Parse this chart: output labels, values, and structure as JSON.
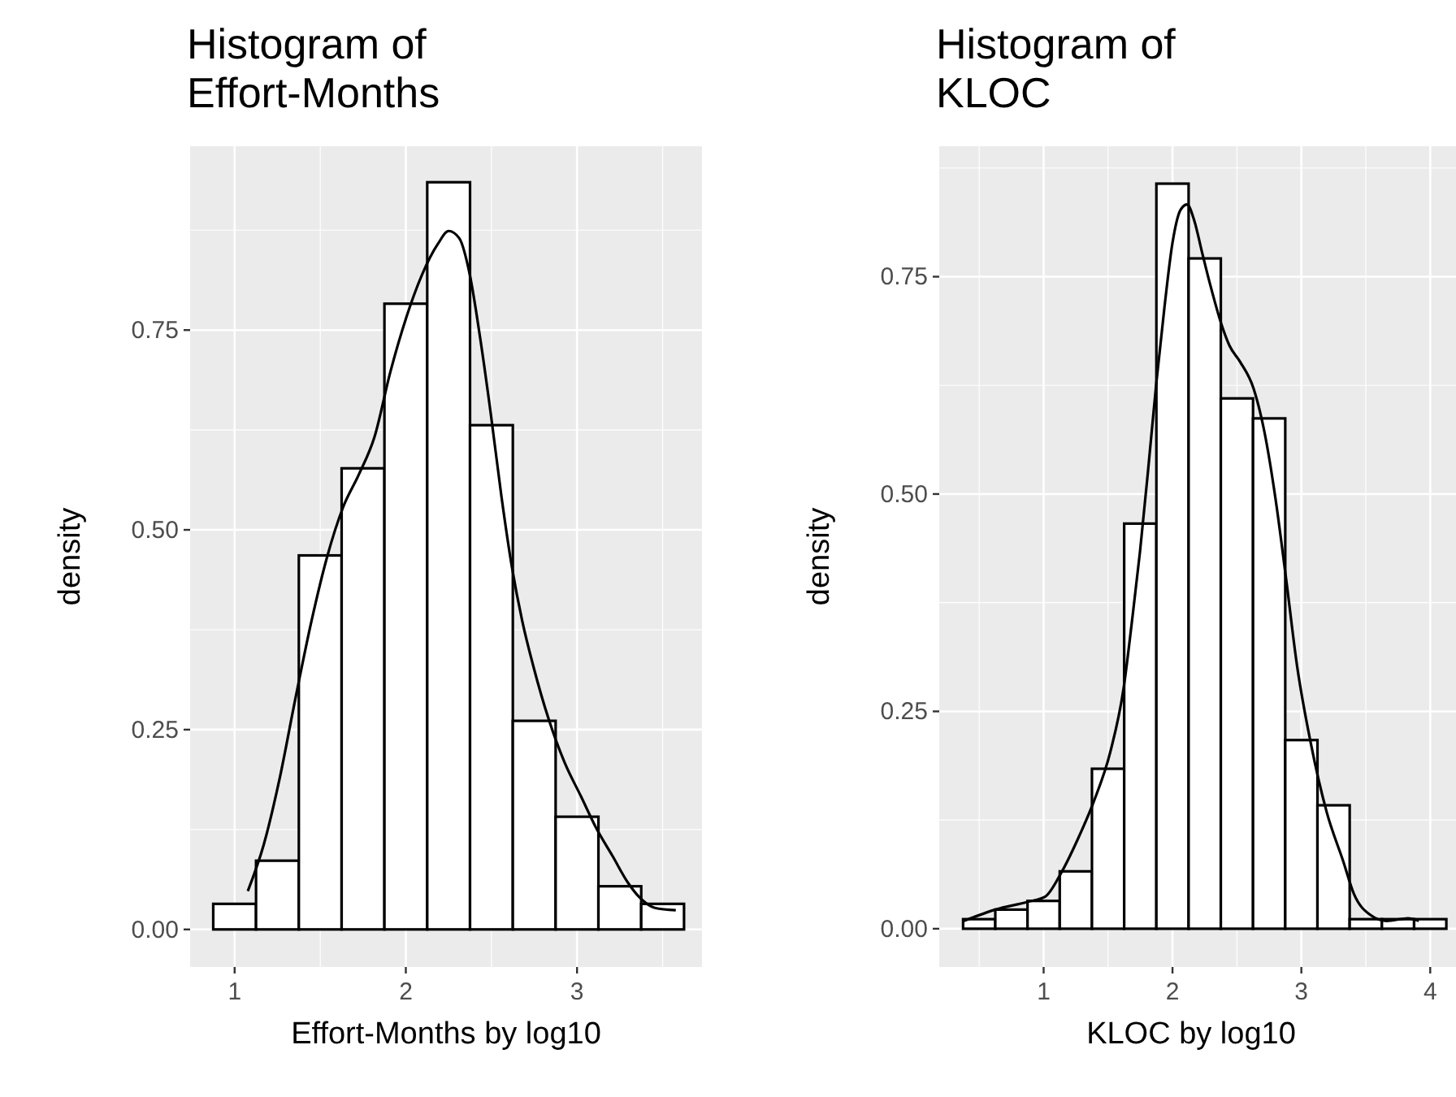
{
  "chart_data": [
    {
      "type": "histogram",
      "title": "Histogram of\nEffort-Months",
      "xlabel": "Effort-Months by log10",
      "ylabel": "density",
      "color": "#ffffff",
      "grid": true,
      "bins": [
        0.875,
        1.125,
        1.375,
        1.625,
        1.875,
        2.125,
        2.375,
        2.625,
        2.875,
        3.125,
        3.375,
        3.625
      ],
      "values": [
        0.032,
        0.086,
        0.468,
        0.577,
        0.783,
        0.935,
        0.631,
        0.261,
        0.141,
        0.054,
        0.032
      ],
      "xlim": [
        0.74,
        3.73
      ],
      "xticks": [
        1,
        2,
        3
      ],
      "ylim": [
        -0.047,
        0.98
      ],
      "yticks": [
        {
          "value": 0,
          "label": "0.00"
        },
        {
          "value": 0.25,
          "label": "0.25"
        },
        {
          "value": 0.5,
          "label": "0.50"
        },
        {
          "value": 0.75,
          "label": "0.75"
        }
      ],
      "series": [
        {
          "type": "line",
          "color": "#000000",
          "x": [
            1.077,
            1.17,
            1.262,
            1.355,
            1.448,
            1.54,
            1.633,
            1.725,
            1.818,
            1.91,
            2.003,
            2.096,
            2.188,
            2.25,
            2.312,
            2.373,
            2.435,
            2.497,
            2.559,
            2.62,
            2.682,
            2.744,
            2.836,
            2.929,
            3.022,
            3.114,
            3.207,
            3.299,
            3.361,
            3.454,
            3.577
          ],
          "values": [
            0.048,
            0.106,
            0.188,
            0.289,
            0.385,
            0.466,
            0.528,
            0.569,
            0.617,
            0.698,
            0.766,
            0.82,
            0.858,
            0.874,
            0.865,
            0.82,
            0.739,
            0.644,
            0.541,
            0.453,
            0.384,
            0.33,
            0.262,
            0.208,
            0.167,
            0.126,
            0.092,
            0.058,
            0.041,
            0.027,
            0.024
          ]
        }
      ]
    },
    {
      "type": "histogram",
      "title": "Histogram of\nKLOC",
      "xlabel": "KLOC by log10",
      "ylabel": "density",
      "color": "#ffffff",
      "grid": true,
      "bins": [
        0.375,
        0.625,
        0.875,
        1.125,
        1.375,
        1.625,
        1.875,
        2.125,
        2.375,
        2.625,
        2.875,
        3.125,
        3.375,
        3.625,
        3.875,
        4.125
      ],
      "values": [
        0.011,
        0.022,
        0.032,
        0.066,
        0.184,
        0.466,
        0.857,
        0.771,
        0.61,
        0.587,
        0.217,
        0.142,
        0.011,
        0.011,
        0.011
      ],
      "xlim": [
        0.19,
        4.2
      ],
      "xticks": [
        1,
        2,
        3,
        4
      ],
      "ylim": [
        -0.044,
        0.9
      ],
      "yticks": [
        {
          "value": 0,
          "label": "0.00"
        },
        {
          "value": 0.25,
          "label": "0.25"
        },
        {
          "value": 0.5,
          "label": "0.50"
        },
        {
          "value": 0.75,
          "label": "0.75"
        }
      ],
      "series": [
        {
          "type": "line",
          "color": "#000000",
          "x": [
            0.382,
            0.626,
            0.878,
            1.013,
            1.139,
            1.265,
            1.391,
            1.517,
            1.622,
            1.685,
            1.748,
            1.811,
            1.874,
            1.937,
            2.0,
            2.063,
            2.113,
            2.168,
            2.231,
            2.294,
            2.378,
            2.441,
            2.525,
            2.63,
            2.714,
            2.798,
            2.882,
            2.966,
            3.071,
            3.197,
            3.324,
            3.408,
            3.534,
            3.66,
            3.828,
            3.912
          ],
          "values": [
            0.009,
            0.022,
            0.031,
            0.037,
            0.065,
            0.103,
            0.147,
            0.203,
            0.278,
            0.353,
            0.434,
            0.528,
            0.627,
            0.714,
            0.789,
            0.827,
            0.833,
            0.815,
            0.777,
            0.74,
            0.696,
            0.671,
            0.652,
            0.621,
            0.571,
            0.496,
            0.402,
            0.303,
            0.215,
            0.134,
            0.078,
            0.04,
            0.016,
            0.009,
            0.012,
            0.009
          ]
        }
      ]
    }
  ]
}
